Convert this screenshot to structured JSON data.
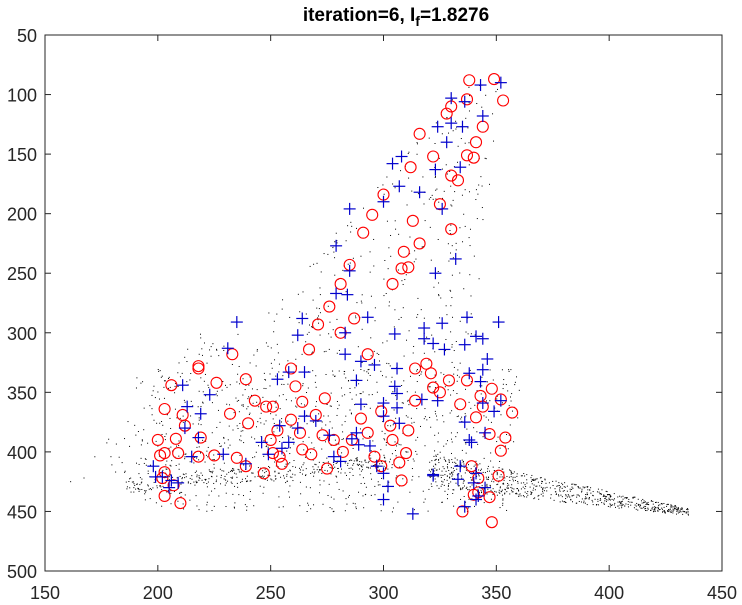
{
  "chart_data": {
    "type": "scatter",
    "title": {
      "prefix": "iteration=6,  ",
      "symbol": "I",
      "subscript": "f",
      "suffix": "=1.8276"
    },
    "xlabel": "",
    "ylabel": "",
    "xlim": [
      150,
      450
    ],
    "ylim": [
      50,
      500
    ],
    "y_reversed": true,
    "grid": false,
    "xticks": [
      150,
      200,
      250,
      300,
      350,
      400,
      450
    ],
    "yticks": [
      50,
      100,
      150,
      200,
      250,
      300,
      350,
      400,
      450,
      500
    ],
    "colors": {
      "circles": "#ff0000",
      "crosses": "#0000cc",
      "dots": "#000000",
      "axes": "#262626"
    },
    "series": [
      {
        "marker": "circle",
        "color": "#ff0000",
        "points": [
          [
            349,
            87
          ],
          [
            338,
            88
          ],
          [
            353,
            105
          ],
          [
            337,
            104
          ],
          [
            330,
            110
          ],
          [
            328,
            116
          ],
          [
            344,
            127
          ],
          [
            341,
            140
          ],
          [
            316,
            133
          ],
          [
            337,
            151
          ],
          [
            340,
            153
          ],
          [
            322,
            152
          ],
          [
            330,
            168
          ],
          [
            333,
            172
          ],
          [
            312,
            161
          ],
          [
            300,
            184
          ],
          [
            295,
            201
          ],
          [
            325,
            192
          ],
          [
            330,
            213
          ],
          [
            291,
            216
          ],
          [
            313,
            206
          ],
          [
            316,
            225
          ],
          [
            309,
            232
          ],
          [
            311,
            245
          ],
          [
            308,
            246
          ],
          [
            285,
            243
          ],
          [
            304,
            259
          ],
          [
            281,
            259
          ],
          [
            276,
            278
          ],
          [
            287,
            288
          ],
          [
            281,
            300
          ],
          [
            271,
            293
          ],
          [
            259,
            330
          ],
          [
            267,
            314
          ],
          [
            293,
            318
          ],
          [
            251,
            362
          ],
          [
            261,
            345
          ],
          [
            248,
            362
          ],
          [
            239,
            339
          ],
          [
            226,
            342
          ],
          [
            218,
            328
          ],
          [
            233,
            318
          ],
          [
            211,
            369
          ],
          [
            212,
            378
          ],
          [
            203,
            364
          ],
          [
            200,
            390
          ],
          [
            209,
            401
          ],
          [
            218,
            404
          ],
          [
            219,
            388
          ],
          [
            225,
            403
          ],
          [
            243,
            357
          ],
          [
            232,
            368
          ],
          [
            240,
            376
          ],
          [
            218,
            330
          ],
          [
            206,
            344
          ],
          [
            208,
            389
          ],
          [
            203,
            401
          ],
          [
            201,
            403
          ],
          [
            203,
            417
          ],
          [
            202,
            422
          ],
          [
            203,
            437
          ],
          [
            207,
            428
          ],
          [
            210,
            443
          ],
          [
            235,
            405
          ],
          [
            239,
            412
          ],
          [
            250,
            390
          ],
          [
            253,
            382
          ],
          [
            251,
            401
          ],
          [
            254,
            404
          ],
          [
            247,
            418
          ],
          [
            255,
            410
          ],
          [
            259,
            373
          ],
          [
            264,
            358
          ],
          [
            263,
            384
          ],
          [
            264,
            398
          ],
          [
            268,
            402
          ],
          [
            270,
            369
          ],
          [
            274,
            355
          ],
          [
            273,
            386
          ],
          [
            275,
            414
          ],
          [
            278,
            390
          ],
          [
            282,
            400
          ],
          [
            286,
            390
          ],
          [
            290,
            372
          ],
          [
            293,
            384
          ],
          [
            299,
            366
          ],
          [
            303,
            378
          ],
          [
            296,
            404
          ],
          [
            299,
            412
          ],
          [
            304,
            390
          ],
          [
            307,
            409
          ],
          [
            308,
            424
          ],
          [
            310,
            401
          ],
          [
            311,
            382
          ],
          [
            314,
            357
          ],
          [
            322,
            346
          ],
          [
            329,
            340
          ],
          [
            321,
            334
          ],
          [
            314,
            330
          ],
          [
            319,
            326
          ],
          [
            325,
            350
          ],
          [
            334,
            360
          ],
          [
            337,
            340
          ],
          [
            344,
            362
          ],
          [
            341,
            371
          ],
          [
            347,
            385
          ],
          [
            357,
            367
          ],
          [
            352,
            356
          ],
          [
            348,
            347
          ],
          [
            343,
            353
          ],
          [
            339,
            412
          ],
          [
            342,
            422
          ],
          [
            340,
            436
          ],
          [
            335,
            450
          ],
          [
            342,
            434
          ],
          [
            347,
            438
          ],
          [
            348,
            459
          ],
          [
            354,
            388
          ],
          [
            352,
            399
          ],
          [
            351,
            420
          ]
        ]
      },
      {
        "marker": "plus",
        "color": "#0000cc",
        "points": [
          [
            343,
            92
          ],
          [
            352,
            90
          ],
          [
            330,
            103
          ],
          [
            336,
            106
          ],
          [
            344,
            118
          ],
          [
            330,
            124
          ],
          [
            324,
            127
          ],
          [
            335,
            127
          ],
          [
            328,
            140
          ],
          [
            323,
            163
          ],
          [
            334,
            161
          ],
          [
            308,
            152
          ],
          [
            304,
            158
          ],
          [
            307,
            177
          ],
          [
            316,
            182
          ],
          [
            326,
            196
          ],
          [
            285,
            196
          ],
          [
            279,
            227
          ],
          [
            300,
            190
          ],
          [
            285,
            248
          ],
          [
            279,
            267
          ],
          [
            284,
            268
          ],
          [
            323,
            250
          ],
          [
            326,
            292
          ],
          [
            332,
            238
          ],
          [
            235,
            291
          ],
          [
            264,
            288
          ],
          [
            293,
            287
          ],
          [
            262,
            302
          ],
          [
            283,
            300
          ],
          [
            305,
            301
          ],
          [
            231,
            313
          ],
          [
            258,
            333
          ],
          [
            253,
            339
          ],
          [
            288,
            340
          ],
          [
            283,
            318
          ],
          [
            290,
            324
          ],
          [
            296,
            327
          ],
          [
            306,
            351
          ],
          [
            305,
            345
          ],
          [
            306,
            330
          ],
          [
            317,
            356
          ],
          [
            324,
            357
          ],
          [
            306,
            363
          ],
          [
            300,
            370
          ],
          [
            307,
            376
          ],
          [
            290,
            360
          ],
          [
            300,
            359
          ],
          [
            265,
            333
          ],
          [
            223,
            352
          ],
          [
            219,
            368
          ],
          [
            213,
            362
          ],
          [
            211,
            344
          ],
          [
            212,
            380
          ],
          [
            206,
            424
          ],
          [
            202,
            421
          ],
          [
            215,
            404
          ],
          [
            218,
            388
          ],
          [
            229,
            402
          ],
          [
            239,
            410
          ],
          [
            246,
            392
          ],
          [
            249,
            402
          ],
          [
            254,
            378
          ],
          [
            255,
            397
          ],
          [
            258,
            392
          ],
          [
            262,
            380
          ],
          [
            265,
            370
          ],
          [
            270,
            374
          ],
          [
            276,
            386
          ],
          [
            278,
            404
          ],
          [
            281,
            408
          ],
          [
            286,
            389
          ],
          [
            289,
            394
          ],
          [
            288,
            384
          ],
          [
            294,
            395
          ],
          [
            297,
            412
          ],
          [
            300,
            418
          ],
          [
            302,
            429
          ],
          [
            300,
            440
          ],
          [
            313,
            452
          ],
          [
            322,
            419
          ],
          [
            322,
            420
          ],
          [
            333,
            423
          ],
          [
            341,
            418
          ],
          [
            334,
            412
          ],
          [
            338,
            390
          ],
          [
            339,
            392
          ],
          [
            336,
            375
          ],
          [
            345,
            384
          ],
          [
            349,
            366
          ],
          [
            344,
            359
          ],
          [
            352,
            357
          ],
          [
            338,
            334
          ],
          [
            344,
            331
          ],
          [
            346,
            322
          ],
          [
            344,
            305
          ],
          [
            336,
            310
          ],
          [
            322,
            309
          ],
          [
            318,
            305
          ],
          [
            327,
            314
          ],
          [
            318,
            296
          ],
          [
            337,
            287
          ],
          [
            341,
            303
          ],
          [
            351,
            291
          ],
          [
            343,
            341
          ],
          [
            340,
            426
          ],
          [
            342,
            437
          ],
          [
            341,
            440
          ],
          [
            345,
            430
          ],
          [
            336,
            446
          ],
          [
            198,
            412
          ],
          [
            199,
            421
          ],
          [
            205,
            430
          ],
          [
            209,
            426
          ]
        ]
      }
    ]
  }
}
